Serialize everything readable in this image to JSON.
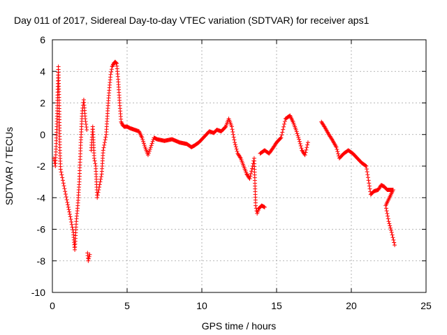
{
  "chart_data": {
    "type": "scatter",
    "title": "Day 011 of 2017, Sidereal Day-to-day VTEC variation (SDTVAR) for receiver aps1",
    "xlabel": "GPS time / hours",
    "ylabel": "SDTVAR / TECUs",
    "xlim": [
      0,
      25
    ],
    "ylim": [
      -10,
      6
    ],
    "xticks": [
      0,
      5,
      10,
      15,
      20,
      25
    ],
    "yticks": [
      -10,
      -8,
      -6,
      -4,
      -2,
      0,
      2,
      4,
      6
    ],
    "xtick_labels": [
      "0",
      "5",
      "10",
      "15",
      "20",
      "25"
    ],
    "ytick_labels": [
      "-10",
      "-8",
      "-6",
      "-4",
      "-2",
      "0",
      "2",
      "4",
      "6"
    ],
    "grid": true,
    "marker": "+",
    "series_color": "#ff0000",
    "series": [
      {
        "name": "SDTVAR",
        "trace": [
          [
            0.1,
            -1.5
          ],
          [
            0.2,
            -2.0
          ],
          [
            0.3,
            0.5
          ],
          [
            0.35,
            2.5
          ],
          [
            0.4,
            4.3
          ],
          [
            0.45,
            2.0
          ],
          [
            0.5,
            -1.0
          ],
          [
            0.55,
            -2.2
          ],
          [
            1.0,
            -4.3
          ],
          [
            1.2,
            -5.2
          ],
          [
            1.4,
            -6.2
          ],
          [
            1.5,
            -7.3
          ],
          [
            1.6,
            -5.5
          ],
          [
            1.7,
            -4.5
          ],
          [
            1.8,
            -3.0
          ],
          [
            1.9,
            -0.5
          ],
          [
            2.0,
            1.5
          ],
          [
            2.1,
            2.2
          ],
          [
            2.2,
            1.0
          ],
          [
            2.3,
            0.3
          ],
          [
            2.35,
            -7.5
          ],
          [
            2.4,
            -8.0
          ],
          [
            2.5,
            -7.6
          ],
          [
            2.6,
            -1.0
          ],
          [
            2.7,
            0.5
          ],
          [
            2.8,
            -1.5
          ],
          [
            2.9,
            -2.0
          ],
          [
            3.0,
            -4.0
          ],
          [
            3.1,
            -3.5
          ],
          [
            3.2,
            -3.0
          ],
          [
            3.3,
            -2.5
          ],
          [
            3.4,
            -1.0
          ],
          [
            3.5,
            -0.5
          ],
          [
            3.6,
            0.0
          ],
          [
            3.7,
            1.5
          ],
          [
            3.8,
            2.8
          ],
          [
            3.9,
            3.8
          ],
          [
            4.0,
            4.3
          ],
          [
            4.1,
            4.5
          ],
          [
            4.2,
            4.6
          ],
          [
            4.3,
            4.5
          ],
          [
            4.4,
            3.5
          ],
          [
            4.5,
            2.0
          ],
          [
            4.6,
            0.8
          ],
          [
            4.7,
            0.6
          ],
          [
            4.8,
            0.5
          ],
          [
            5.0,
            0.5
          ],
          [
            5.2,
            0.4
          ],
          [
            5.5,
            0.3
          ],
          [
            5.8,
            0.2
          ],
          [
            6.0,
            -0.2
          ],
          [
            6.2,
            -0.8
          ],
          [
            6.4,
            -1.3
          ],
          [
            6.8,
            -0.2
          ],
          [
            7.0,
            -0.3
          ],
          [
            7.5,
            -0.4
          ],
          [
            8.0,
            -0.3
          ],
          [
            8.5,
            -0.5
          ],
          [
            9.0,
            -0.6
          ],
          [
            9.3,
            -0.8
          ],
          [
            9.5,
            -0.7
          ],
          [
            9.8,
            -0.5
          ],
          [
            10.0,
            -0.3
          ],
          [
            10.3,
            0.0
          ],
          [
            10.5,
            0.2
          ],
          [
            10.8,
            0.1
          ],
          [
            11.0,
            0.3
          ],
          [
            11.3,
            0.2
          ],
          [
            11.6,
            0.5
          ],
          [
            11.8,
            1.0
          ],
          [
            12.0,
            0.5
          ],
          [
            12.2,
            -0.5
          ],
          [
            12.4,
            -1.2
          ],
          [
            12.6,
            -1.5
          ],
          [
            12.8,
            -2.0
          ],
          [
            13.0,
            -2.5
          ],
          [
            13.2,
            -2.8
          ],
          [
            13.4,
            -2.0
          ],
          [
            13.5,
            -1.5
          ],
          [
            13.6,
            -4.5
          ],
          [
            13.7,
            -5.0
          ],
          [
            13.8,
            -4.7
          ],
          [
            14.0,
            -4.5
          ],
          [
            14.2,
            -4.6
          ],
          [
            13.9,
            -1.2
          ],
          [
            14.2,
            -1.0
          ],
          [
            14.5,
            -1.2
          ],
          [
            14.8,
            -0.8
          ],
          [
            15.0,
            -0.5
          ],
          [
            15.3,
            -0.2
          ],
          [
            15.6,
            1.0
          ],
          [
            15.9,
            1.2
          ],
          [
            16.1,
            0.8
          ],
          [
            16.3,
            0.3
          ],
          [
            16.5,
            -0.3
          ],
          [
            16.7,
            -1.0
          ],
          [
            16.9,
            -1.3
          ],
          [
            17.1,
            -0.5
          ],
          [
            18.0,
            0.8
          ],
          [
            18.2,
            0.5
          ],
          [
            18.5,
            0.0
          ],
          [
            18.7,
            -0.3
          ],
          [
            19.0,
            -0.8
          ],
          [
            19.2,
            -1.5
          ],
          [
            19.5,
            -1.2
          ],
          [
            19.8,
            -1.0
          ],
          [
            20.1,
            -1.2
          ],
          [
            20.4,
            -1.5
          ],
          [
            20.7,
            -1.8
          ],
          [
            21.0,
            -2.0
          ],
          [
            21.3,
            -3.8
          ],
          [
            21.5,
            -3.6
          ],
          [
            21.8,
            -3.5
          ],
          [
            22.0,
            -3.2
          ],
          [
            22.2,
            -3.3
          ],
          [
            22.4,
            -3.5
          ],
          [
            22.6,
            -3.5
          ],
          [
            22.8,
            -3.5
          ],
          [
            22.3,
            -4.5
          ],
          [
            22.5,
            -5.5
          ],
          [
            22.7,
            -6.2
          ],
          [
            22.9,
            -7.0
          ]
        ]
      }
    ]
  }
}
